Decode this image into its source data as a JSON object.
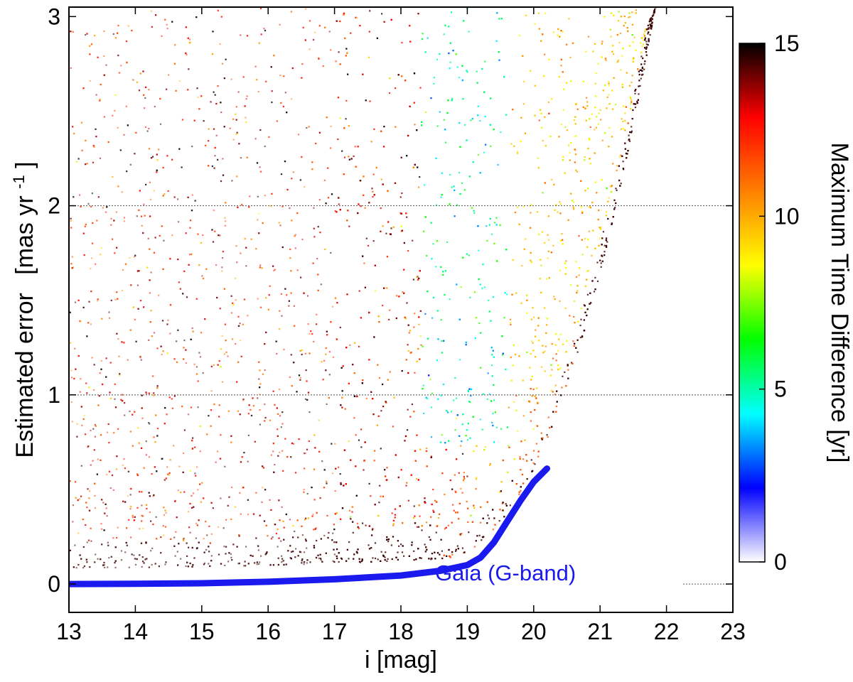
{
  "chart_data": {
    "type": "scatter",
    "title": "",
    "xlabel": "i [mag]",
    "ylabel": "Estimated error",
    "ylabel_unit": "[mas yr-1]",
    "ylabel_unit_base": "[mas yr",
    "ylabel_unit_exp": "-1",
    "ylabel_unit_close": "]",
    "xlim": [
      13,
      23
    ],
    "ylim": [
      -0.15,
      3.05
    ],
    "x_ticks": [
      "13",
      "14",
      "15",
      "16",
      "17",
      "18",
      "19",
      "20",
      "21",
      "22",
      "23"
    ],
    "y_ticks": [
      "0",
      "1",
      "2",
      "3"
    ],
    "grid_y_values": [
      1,
      2
    ],
    "short_dashed_segment": {
      "y": 0,
      "x_from": 22.25,
      "x_to": 23
    },
    "colorbar": {
      "label": "Maximum Time Difference [yr]",
      "range": [
        0,
        15
      ],
      "ticks": [
        "0",
        "5",
        "10",
        "15"
      ],
      "colormap": [
        "#ffffff",
        "#0000ff",
        "#00ffff",
        "#00ff00",
        "#ffff00",
        "#ff8000",
        "#ff0000",
        "#000000"
      ]
    },
    "series": [
      {
        "name": "Gaia (G-band)",
        "color": "#1a1aee",
        "type": "line",
        "points": [
          [
            13.0,
            0.0
          ],
          [
            14.0,
            0.001
          ],
          [
            15.0,
            0.004
          ],
          [
            16.0,
            0.012
          ],
          [
            17.0,
            0.025
          ],
          [
            18.0,
            0.045
          ],
          [
            18.6,
            0.07
          ],
          [
            19.0,
            0.1
          ],
          [
            19.2,
            0.14
          ],
          [
            19.4,
            0.22
          ],
          [
            19.6,
            0.33
          ],
          [
            19.8,
            0.44
          ],
          [
            20.0,
            0.54
          ],
          [
            20.2,
            0.61
          ]
        ]
      }
    ],
    "scatter_regions": [
      {
        "color": "#c42b1c",
        "description": "bright stars, time diff ~13 yr",
        "x_range": [
          13.0,
          18.5
        ],
        "y_range": [
          0.2,
          3.0
        ]
      },
      {
        "color": "#3fe0d0",
        "description": "time diff ~5 yr",
        "x_range": [
          18.5,
          20.5
        ],
        "y_range": [
          0.7,
          3.0
        ]
      },
      {
        "color": "#c8f020",
        "description": "time diff ~9-10 yr",
        "x_range": [
          19.0,
          21.9
        ],
        "y_range": [
          0.5,
          3.0
        ]
      },
      {
        "color": "#000000",
        "description": "lower envelope, time diff ~15 yr",
        "x_range": [
          13.5,
          21.9
        ],
        "y_range": [
          0.1,
          0.9
        ]
      }
    ]
  }
}
